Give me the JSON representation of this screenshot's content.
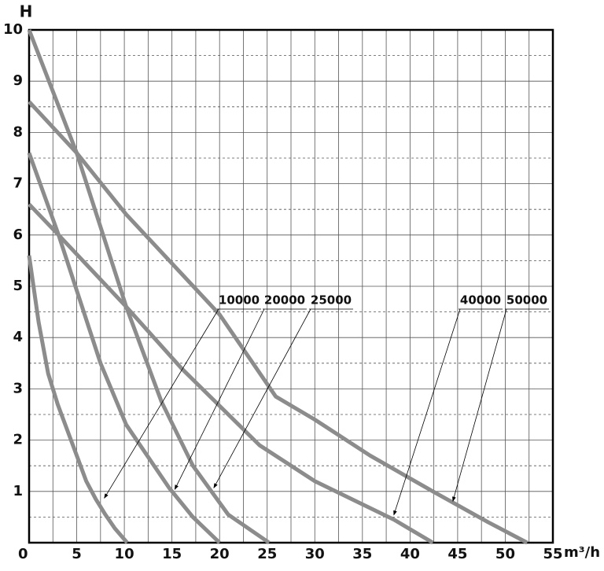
{
  "chart_data": {
    "type": "line",
    "ylabel": "H",
    "xlabel": "m³/h",
    "xlim": [
      0,
      55
    ],
    "ylim": [
      0,
      10
    ],
    "xticks": [
      0,
      5,
      10,
      15,
      20,
      25,
      30,
      35,
      40,
      45,
      50,
      55
    ],
    "yticks": [
      1,
      2,
      3,
      4,
      5,
      6,
      7,
      8,
      9,
      10
    ],
    "xminorticks": [
      2.5,
      7.5,
      12.5,
      17.5,
      22.5,
      27.5,
      32.5,
      37.5,
      42.5,
      47.5,
      52.5
    ],
    "yminorticks": [
      0.5,
      1.5,
      2.5,
      3.5,
      4.5,
      5.5,
      6.5,
      7.5,
      8.5,
      9.5
    ],
    "grid": true,
    "series": [
      {
        "name": "10000",
        "color": "#8c8c8c",
        "x": [
          0,
          1,
          2,
          3,
          4,
          5,
          6,
          7,
          8,
          9,
          10.3
        ],
        "values": [
          5.6,
          4.3,
          3.3,
          2.7,
          2.2,
          1.7,
          1.2,
          0.85,
          0.55,
          0.28,
          0
        ]
      },
      {
        "name": "20000",
        "color": "#8c8c8c",
        "x": [
          0,
          3.1,
          7.5,
          10.2,
          14.7,
          17.2,
          20
        ],
        "values": [
          7.6,
          6.0,
          3.5,
          2.3,
          1.07,
          0.5,
          0
        ]
      },
      {
        "name": "25000",
        "color": "#8c8c8c",
        "x": [
          0,
          5,
          10.2,
          13.9,
          17.2,
          20.9,
          25.2
        ],
        "values": [
          10,
          7.6,
          4.6,
          2.75,
          1.5,
          0.55,
          0
        ]
      },
      {
        "name": "40000",
        "color": "#8c8c8c",
        "x": [
          0,
          3.1,
          10.2,
          16,
          24.2,
          30,
          38.3,
          42.4
        ],
        "values": [
          6.6,
          6.0,
          4.6,
          3.4,
          1.9,
          1.2,
          0.45,
          0
        ]
      },
      {
        "name": "50000",
        "color": "#8c8c8c",
        "x": [
          0,
          5,
          10.2,
          20,
          25.9,
          30,
          35.8,
          42.4,
          48.2,
          52.3
        ],
        "values": [
          8.6,
          7.6,
          6.4,
          4.45,
          2.85,
          2.4,
          1.7,
          1.0,
          0.4,
          0
        ]
      }
    ],
    "annotations": [
      {
        "text": "10000",
        "x": 7.9,
        "y": 0.87
      },
      {
        "text": "20000",
        "x": 15.3,
        "y": 1.04
      },
      {
        "text": "25000",
        "x": 19.4,
        "y": 1.07
      },
      {
        "text": "40000",
        "x": 38.3,
        "y": 0.54
      },
      {
        "text": "50000",
        "x": 44.5,
        "y": 0.81
      }
    ]
  }
}
